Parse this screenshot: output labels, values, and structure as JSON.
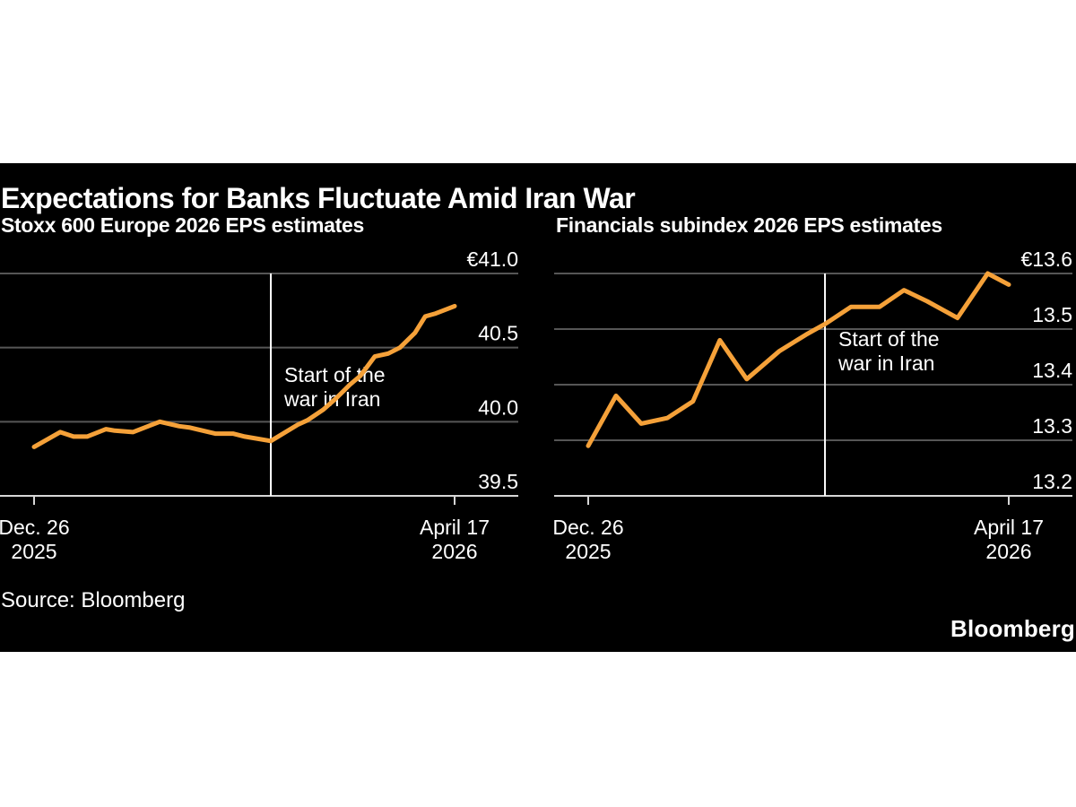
{
  "header": {
    "title": "Expectations for Banks Fluctuate Amid Iran War"
  },
  "source_label": "Source: Bloomberg",
  "brand_logo": "Bloomberg",
  "colors": {
    "page_background": "#ffffff",
    "panel_background": "#000000",
    "series_line": "#f5a139",
    "gridline": "#565656",
    "axis_line": "#d6d6d6",
    "event_line": "#ffffff",
    "text": "#ffffff"
  },
  "chart_data": [
    {
      "type": "line",
      "title": "Stoxx 600 Europe 2026 EPS estimates",
      "ylim": [
        39.5,
        41.0
      ],
      "grid": true,
      "y_axis_side": "right",
      "yticks": [
        {
          "value": 41.0,
          "label": "€41.0"
        },
        {
          "value": 40.5,
          "label": "40.5"
        },
        {
          "value": 40.0,
          "label": "40.0"
        },
        {
          "value": 39.5,
          "label": "39.5"
        }
      ],
      "x_ticks": [
        {
          "frac": 0.0,
          "label": [
            "Dec. 26",
            "2025"
          ]
        },
        {
          "frac": 1.0,
          "label": [
            "April 17",
            "2026"
          ]
        }
      ],
      "event_line": {
        "frac": 0.563,
        "label": [
          "Start of the",
          "war in Iran"
        ]
      },
      "series": [
        {
          "f": 0.0,
          "v": 39.83
        },
        {
          "f": 0.062,
          "v": 39.93
        },
        {
          "f": 0.094,
          "v": 39.9
        },
        {
          "f": 0.126,
          "v": 39.9
        },
        {
          "f": 0.171,
          "v": 39.95
        },
        {
          "f": 0.192,
          "v": 39.94
        },
        {
          "f": 0.235,
          "v": 39.93
        },
        {
          "f": 0.299,
          "v": 40.0
        },
        {
          "f": 0.345,
          "v": 39.97
        },
        {
          "f": 0.371,
          "v": 39.96
        },
        {
          "f": 0.431,
          "v": 39.92
        },
        {
          "f": 0.473,
          "v": 39.92
        },
        {
          "f": 0.501,
          "v": 39.9
        },
        {
          "f": 0.563,
          "v": 39.87
        },
        {
          "f": 0.627,
          "v": 39.98
        },
        {
          "f": 0.65,
          "v": 40.01
        },
        {
          "f": 0.687,
          "v": 40.08
        },
        {
          "f": 0.719,
          "v": 40.16
        },
        {
          "f": 0.751,
          "v": 40.25
        },
        {
          "f": 0.776,
          "v": 40.31
        },
        {
          "f": 0.81,
          "v": 40.44
        },
        {
          "f": 0.842,
          "v": 40.46
        },
        {
          "f": 0.87,
          "v": 40.5
        },
        {
          "f": 0.906,
          "v": 40.6
        },
        {
          "f": 0.93,
          "v": 40.71
        },
        {
          "f": 0.955,
          "v": 40.73
        },
        {
          "f": 1.0,
          "v": 40.78
        }
      ]
    },
    {
      "type": "line",
      "title": "Financials subindex 2026 EPS estimates",
      "ylim": [
        13.2,
        13.6
      ],
      "grid": true,
      "y_axis_side": "right",
      "yticks": [
        {
          "value": 13.6,
          "label": "€13.6"
        },
        {
          "value": 13.5,
          "label": "13.5"
        },
        {
          "value": 13.4,
          "label": "13.4"
        },
        {
          "value": 13.3,
          "label": "13.3"
        },
        {
          "value": 13.2,
          "label": "13.2"
        }
      ],
      "x_ticks": [
        {
          "frac": 0.0,
          "label": [
            "Dec. 26",
            "2025"
          ]
        },
        {
          "frac": 1.0,
          "label": [
            "April 17",
            "2026"
          ]
        }
      ],
      "event_line": {
        "frac": 0.563,
        "label": [
          "Start of the",
          "war in Iran"
        ]
      },
      "series": [
        {
          "f": 0.0,
          "v": 13.29
        },
        {
          "f": 0.066,
          "v": 13.38
        },
        {
          "f": 0.126,
          "v": 13.33
        },
        {
          "f": 0.188,
          "v": 13.34
        },
        {
          "f": 0.249,
          "v": 13.37
        },
        {
          "f": 0.313,
          "v": 13.48
        },
        {
          "f": 0.377,
          "v": 13.41
        },
        {
          "f": 0.454,
          "v": 13.46
        },
        {
          "f": 0.518,
          "v": 13.49
        },
        {
          "f": 0.565,
          "v": 13.51
        },
        {
          "f": 0.625,
          "v": 13.54
        },
        {
          "f": 0.693,
          "v": 13.54
        },
        {
          "f": 0.751,
          "v": 13.57
        },
        {
          "f": 0.806,
          "v": 13.55
        },
        {
          "f": 0.878,
          "v": 13.52
        },
        {
          "f": 0.95,
          "v": 13.6
        },
        {
          "f": 1.0,
          "v": 13.58
        }
      ]
    }
  ]
}
